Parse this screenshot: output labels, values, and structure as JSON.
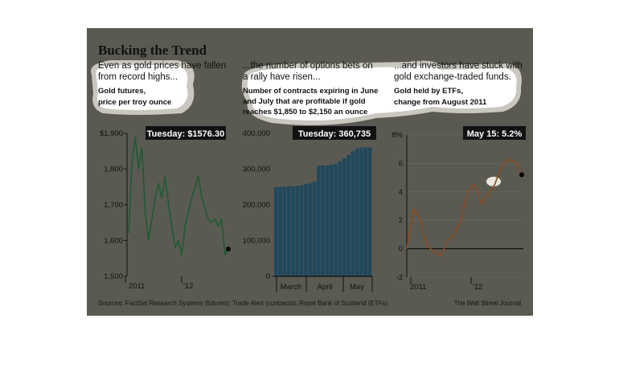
{
  "title": "Bucking the Trend",
  "panels": [
    {
      "intro_lines": [
        "Even as gold prices have fallen",
        "from record highs..."
      ],
      "subtitle_lines": [
        "Gold futures,",
        "price per troy ounce"
      ],
      "callout": "Tuesday: $1576.30"
    },
    {
      "intro_lines": [
        "...the number of options bets on",
        "a rally have risen..."
      ],
      "subtitle_lines": [
        "Number of contracts expiring in June",
        "and July that are profitable if gold",
        "reaches $1,850 to $2,150 an ounce"
      ],
      "callout": "Tuesday: 360,735"
    },
    {
      "intro_lines": [
        "...and investors have stuck with",
        "gold exchange-traded funds."
      ],
      "subtitle_lines": [
        "Gold held by ETFs,",
        "change from August 2011"
      ],
      "callout": "May 15: 5.2%"
    }
  ],
  "source": "Sources: FactSet Research Systems (futures); Trade Alert (contracts); Royal Bank of Scotland (ETFs)",
  "credit": "The Wall Street Journal",
  "colors": {
    "background": "#5a5a52",
    "gold_line": "#1f5a32",
    "bars": "#20485c",
    "etf_line": "#8b4a1e",
    "callout_bg": "#111111",
    "text": "#111111",
    "highlight": "#ffffff"
  },
  "chart_data": [
    {
      "type": "line",
      "title": "Gold futures, price per troy ounce",
      "x_tick_labels": [
        "2011",
        "'12"
      ],
      "y_tick_labels": [
        "$1,900",
        "1,800",
        "1,700",
        "1,600",
        "1,500"
      ],
      "ylim": [
        1500,
        1900
      ],
      "grid": false,
      "x": [
        "2011-09",
        "2011-09",
        "2011-09",
        "2011-09",
        "2011-09",
        "2011-10",
        "2011-10",
        "2011-10",
        "2011-10",
        "2011-11",
        "2011-11",
        "2011-11",
        "2011-11",
        "2011-12",
        "2011-12",
        "2011-12",
        "2011-12",
        "2012-01",
        "2012-01",
        "2012-01",
        "2012-02",
        "2012-02",
        "2012-02",
        "2012-03",
        "2012-03",
        "2012-03",
        "2012-04",
        "2012-04",
        "2012-04",
        "2012-05",
        "2012-05"
      ],
      "series": [
        {
          "values": [
            1620,
            1820,
            1890,
            1800,
            1860,
            1680,
            1600,
            1660,
            1720,
            1760,
            1720,
            1780,
            1700,
            1640,
            1580,
            1600,
            1560,
            1640,
            1680,
            1720,
            1750,
            1780,
            1720,
            1690,
            1660,
            1650,
            1660,
            1640,
            1660,
            1560,
            1576.3
          ]
        }
      ]
    },
    {
      "type": "bar",
      "title": "Number of contracts expiring in June and July that are profitable if gold reaches $1,850 to $2,150 an ounce",
      "x_tick_labels": [
        "March",
        "April",
        "May"
      ],
      "y_tick_labels": [
        "400,000",
        "300,000",
        "200,000",
        "100,000",
        "0"
      ],
      "ylim": [
        0,
        400000
      ],
      "grid": false,
      "values": [
        250000,
        250000,
        251000,
        252000,
        252000,
        253000,
        255000,
        258000,
        260000,
        265000,
        309000,
        310000,
        310000,
        312000,
        315000,
        322000,
        330000,
        340000,
        350000,
        358000,
        360000,
        361000,
        360735
      ]
    },
    {
      "type": "line",
      "title": "Gold held by ETFs, change from August 2011",
      "x_tick_labels": [
        "2011",
        "'12"
      ],
      "y_tick_labels": [
        "8%",
        "6",
        "4",
        "2",
        "0",
        "-2"
      ],
      "ylim": [
        -2,
        8
      ],
      "grid": true,
      "x": [
        "2011-08",
        "2011-09",
        "2011-09",
        "2011-10",
        "2011-10",
        "2011-11",
        "2011-11",
        "2011-12",
        "2011-12",
        "2012-01",
        "2012-01",
        "2012-02",
        "2012-02",
        "2012-03",
        "2012-03",
        "2012-04",
        "2012-04",
        "2012-05"
      ],
      "series": [
        {
          "values": [
            0,
            2.8,
            2.0,
            0.2,
            -0.2,
            -0.5,
            0.5,
            1.0,
            2.0,
            4.0,
            4.5,
            3.2,
            3.8,
            4.5,
            5.8,
            6.3,
            6.1,
            5.2
          ]
        }
      ]
    }
  ]
}
